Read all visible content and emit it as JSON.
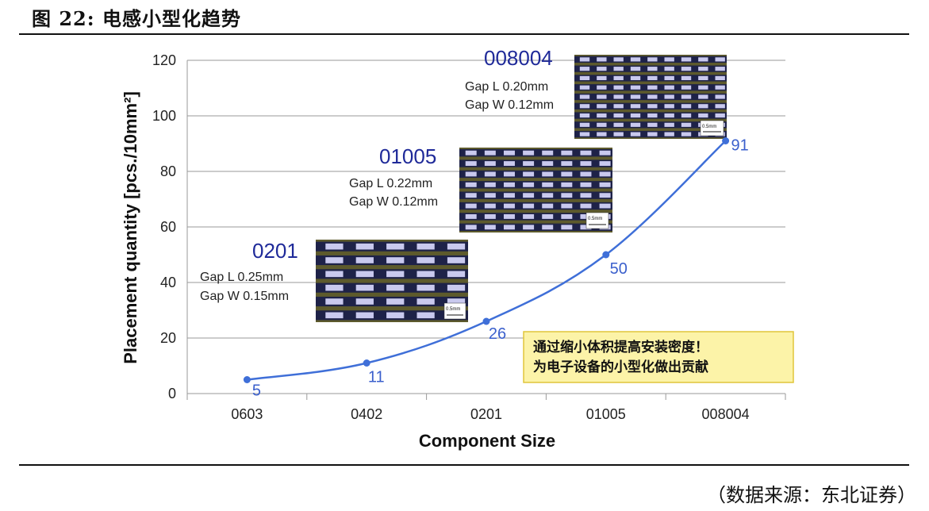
{
  "figure": {
    "title": "图 22: 电感小型化趋势",
    "source": "（数据来源：东北证券）"
  },
  "chart_data": {
    "type": "line",
    "categories": [
      "0603",
      "0402",
      "0201",
      "01005",
      "008004"
    ],
    "series": [
      {
        "values": [
          5,
          11,
          26,
          50,
          91
        ]
      }
    ],
    "data_labels": [
      "5",
      "11",
      "26",
      "50",
      "91"
    ],
    "xlabel": "Component Size",
    "ylabel": "Placement quantity [pcs./10mm²]",
    "ylim": [
      0,
      120
    ],
    "yticks": [
      0,
      20,
      40,
      60,
      80,
      100,
      120
    ],
    "grid": true,
    "line_color": "#3f6fd8",
    "annotations": [
      {
        "title": "0201",
        "gap_l": "Gap L  0.25mm",
        "gap_w": "Gap W 0.15mm",
        "scale": "0.5mm"
      },
      {
        "title": "01005",
        "gap_l": "Gap L  0.22mm",
        "gap_w": "Gap W 0.12mm",
        "scale": "0.5mm"
      },
      {
        "title": "008004",
        "gap_l": "Gap L  0.20mm",
        "gap_w": "Gap W 0.12mm",
        "scale": "0.5mm"
      }
    ],
    "note": {
      "line1": "通过缩小体积提高安装密度！",
      "line2": "为电子设备的小型化做出贡献"
    }
  }
}
